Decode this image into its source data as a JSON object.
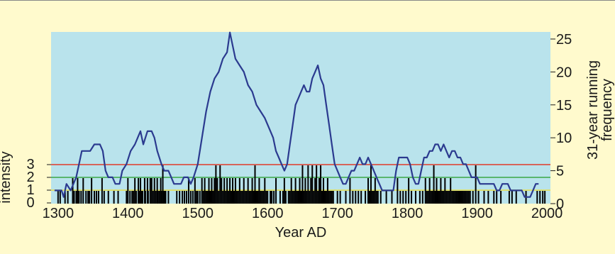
{
  "chart_data": {
    "type": "line",
    "xlabel": "Year AD",
    "ylabel_left": "intensity",
    "ylabel_right_lines": [
      "31-year running",
      "frequency"
    ],
    "xlim": [
      1290,
      2005
    ],
    "ylim_right": [
      0,
      25
    ],
    "ylim_left": [
      0,
      3
    ],
    "x_ticks": [
      1300,
      1400,
      1500,
      1600,
      1700,
      1800,
      1900,
      2000
    ],
    "y_right_ticks": [
      0,
      5,
      10,
      15,
      20,
      25
    ],
    "y_left_ticks": [
      0,
      1,
      2,
      3
    ],
    "grid": false,
    "colors": {
      "page_background": "#fffacd",
      "plot_background": "#b9e3ec",
      "frequency_line": "#2b3a8f",
      "event_bars": "#000000",
      "intensity_1_line": "#e8e04a",
      "intensity_2_line": "#3aa845",
      "intensity_3_line": "#e03a2a"
    },
    "intensity_reference_lines": [
      1,
      2,
      3
    ],
    "series": [
      {
        "values": [
          [
            1295,
            2
          ],
          [
            1305,
            2
          ],
          [
            1308,
            1
          ],
          [
            1312,
            3
          ],
          [
            1318,
            2
          ],
          [
            1322,
            3
          ],
          [
            1326,
            4
          ],
          [
            1330,
            6
          ],
          [
            1334,
            8
          ],
          [
            1340,
            8
          ],
          [
            1346,
            8
          ],
          [
            1352,
            9
          ],
          [
            1360,
            9
          ],
          [
            1364,
            8
          ],
          [
            1368,
            5
          ],
          [
            1372,
            4
          ],
          [
            1378,
            4
          ],
          [
            1382,
            3
          ],
          [
            1388,
            3
          ],
          [
            1392,
            5
          ],
          [
            1398,
            6
          ],
          [
            1404,
            8
          ],
          [
            1410,
            9
          ],
          [
            1414,
            10
          ],
          [
            1418,
            11
          ],
          [
            1422,
            9
          ],
          [
            1428,
            11
          ],
          [
            1434,
            11
          ],
          [
            1438,
            10
          ],
          [
            1442,
            8
          ],
          [
            1448,
            6
          ],
          [
            1452,
            5
          ],
          [
            1458,
            5
          ],
          [
            1462,
            4
          ],
          [
            1466,
            3
          ],
          [
            1472,
            3
          ],
          [
            1476,
            3
          ],
          [
            1480,
            4
          ],
          [
            1486,
            4
          ],
          [
            1490,
            3
          ],
          [
            1494,
            4
          ],
          [
            1500,
            6
          ],
          [
            1506,
            10
          ],
          [
            1512,
            14
          ],
          [
            1518,
            17
          ],
          [
            1524,
            19
          ],
          [
            1530,
            20
          ],
          [
            1536,
            22
          ],
          [
            1542,
            23
          ],
          [
            1546,
            26
          ],
          [
            1550,
            24
          ],
          [
            1554,
            22
          ],
          [
            1560,
            21
          ],
          [
            1566,
            20
          ],
          [
            1572,
            18
          ],
          [
            1578,
            17
          ],
          [
            1584,
            15
          ],
          [
            1590,
            14
          ],
          [
            1596,
            13
          ],
          [
            1600,
            12
          ],
          [
            1604,
            11
          ],
          [
            1608,
            10
          ],
          [
            1612,
            8
          ],
          [
            1616,
            7
          ],
          [
            1620,
            6
          ],
          [
            1624,
            5
          ],
          [
            1628,
            6
          ],
          [
            1632,
            9
          ],
          [
            1636,
            12
          ],
          [
            1640,
            15
          ],
          [
            1644,
            16
          ],
          [
            1648,
            17
          ],
          [
            1652,
            18
          ],
          [
            1656,
            17
          ],
          [
            1660,
            17
          ],
          [
            1664,
            19
          ],
          [
            1668,
            20
          ],
          [
            1672,
            21
          ],
          [
            1676,
            19
          ],
          [
            1680,
            18
          ],
          [
            1684,
            15
          ],
          [
            1688,
            12
          ],
          [
            1692,
            9
          ],
          [
            1696,
            6
          ],
          [
            1700,
            5
          ],
          [
            1704,
            4
          ],
          [
            1708,
            3
          ],
          [
            1712,
            3
          ],
          [
            1716,
            4
          ],
          [
            1720,
            5
          ],
          [
            1724,
            5
          ],
          [
            1728,
            6
          ],
          [
            1732,
            7
          ],
          [
            1736,
            6
          ],
          [
            1740,
            6
          ],
          [
            1744,
            7
          ],
          [
            1748,
            6
          ],
          [
            1752,
            5
          ],
          [
            1756,
            4
          ],
          [
            1760,
            3
          ],
          [
            1764,
            2
          ],
          [
            1768,
            2
          ],
          [
            1772,
            2
          ],
          [
            1776,
            2
          ],
          [
            1780,
            2
          ],
          [
            1784,
            5
          ],
          [
            1788,
            7
          ],
          [
            1792,
            7
          ],
          [
            1796,
            7
          ],
          [
            1800,
            7
          ],
          [
            1804,
            6
          ],
          [
            1808,
            4
          ],
          [
            1812,
            3
          ],
          [
            1816,
            3
          ],
          [
            1820,
            5
          ],
          [
            1824,
            7
          ],
          [
            1828,
            7
          ],
          [
            1832,
            8
          ],
          [
            1836,
            8
          ],
          [
            1840,
            9
          ],
          [
            1844,
            9
          ],
          [
            1848,
            8
          ],
          [
            1852,
            9
          ],
          [
            1856,
            8
          ],
          [
            1860,
            7
          ],
          [
            1864,
            8
          ],
          [
            1868,
            8
          ],
          [
            1872,
            7
          ],
          [
            1876,
            7
          ],
          [
            1880,
            6
          ],
          [
            1884,
            6
          ],
          [
            1888,
            5
          ],
          [
            1892,
            4
          ],
          [
            1896,
            4
          ],
          [
            1900,
            4
          ],
          [
            1904,
            3
          ],
          [
            1908,
            3
          ],
          [
            1912,
            3
          ],
          [
            1916,
            3
          ],
          [
            1920,
            3
          ],
          [
            1924,
            3
          ],
          [
            1928,
            2
          ],
          [
            1932,
            2
          ],
          [
            1936,
            3
          ],
          [
            1940,
            3
          ],
          [
            1944,
            3
          ],
          [
            1948,
            2
          ],
          [
            1952,
            2
          ],
          [
            1956,
            2
          ],
          [
            1960,
            2
          ],
          [
            1964,
            2
          ],
          [
            1968,
            1
          ],
          [
            1972,
            1
          ],
          [
            1976,
            1
          ],
          [
            1980,
            2
          ],
          [
            1984,
            3
          ],
          [
            1988,
            3
          ]
        ]
      }
    ],
    "events": [
      [
        1300,
        1
      ],
      [
        1303,
        1
      ],
      [
        1310,
        1
      ],
      [
        1314,
        1
      ],
      [
        1321,
        2
      ],
      [
        1323,
        1
      ],
      [
        1326,
        1
      ],
      [
        1328,
        2
      ],
      [
        1330,
        1
      ],
      [
        1333,
        1
      ],
      [
        1336,
        2
      ],
      [
        1340,
        1
      ],
      [
        1343,
        1
      ],
      [
        1345,
        1
      ],
      [
        1348,
        2
      ],
      [
        1352,
        1
      ],
      [
        1355,
        1
      ],
      [
        1358,
        1
      ],
      [
        1363,
        2
      ],
      [
        1366,
        1
      ],
      [
        1372,
        1
      ],
      [
        1380,
        1
      ],
      [
        1386,
        1
      ],
      [
        1398,
        1
      ],
      [
        1400,
        2
      ],
      [
        1403,
        1
      ],
      [
        1406,
        1
      ],
      [
        1408,
        1
      ],
      [
        1410,
        2
      ],
      [
        1412,
        1
      ],
      [
        1415,
        2
      ],
      [
        1416,
        1
      ],
      [
        1418,
        2
      ],
      [
        1420,
        1
      ],
      [
        1421,
        1
      ],
      [
        1424,
        2
      ],
      [
        1425,
        1
      ],
      [
        1428,
        2
      ],
      [
        1429,
        1
      ],
      [
        1432,
        2
      ],
      [
        1434,
        2
      ],
      [
        1436,
        1
      ],
      [
        1438,
        2
      ],
      [
        1440,
        1
      ],
      [
        1442,
        2
      ],
      [
        1443,
        1
      ],
      [
        1445,
        1
      ],
      [
        1447,
        2
      ],
      [
        1448,
        1
      ],
      [
        1450,
        3
      ],
      [
        1452,
        1
      ],
      [
        1454,
        1
      ],
      [
        1458,
        1
      ],
      [
        1470,
        1
      ],
      [
        1474,
        1
      ],
      [
        1478,
        1
      ],
      [
        1481,
        1
      ],
      [
        1484,
        1
      ],
      [
        1487,
        2
      ],
      [
        1490,
        1
      ],
      [
        1493,
        1
      ],
      [
        1496,
        2
      ],
      [
        1498,
        1
      ],
      [
        1500,
        1
      ],
      [
        1503,
        1
      ],
      [
        1506,
        2
      ],
      [
        1508,
        1
      ],
      [
        1510,
        2
      ],
      [
        1512,
        1
      ],
      [
        1514,
        1
      ],
      [
        1516,
        2
      ],
      [
        1518,
        1
      ],
      [
        1520,
        2
      ],
      [
        1522,
        1
      ],
      [
        1524,
        2
      ],
      [
        1526,
        3
      ],
      [
        1528,
        2
      ],
      [
        1530,
        1
      ],
      [
        1532,
        3
      ],
      [
        1534,
        2
      ],
      [
        1536,
        1
      ],
      [
        1538,
        2
      ],
      [
        1540,
        1
      ],
      [
        1542,
        2
      ],
      [
        1544,
        1
      ],
      [
        1546,
        2
      ],
      [
        1548,
        1
      ],
      [
        1550,
        2
      ],
      [
        1552,
        1
      ],
      [
        1554,
        2
      ],
      [
        1556,
        1
      ],
      [
        1558,
        1
      ],
      [
        1560,
        2
      ],
      [
        1562,
        1
      ],
      [
        1564,
        1
      ],
      [
        1566,
        2
      ],
      [
        1568,
        1
      ],
      [
        1570,
        1
      ],
      [
        1572,
        2
      ],
      [
        1574,
        1
      ],
      [
        1576,
        1
      ],
      [
        1578,
        2
      ],
      [
        1580,
        1
      ],
      [
        1582,
        3
      ],
      [
        1584,
        1
      ],
      [
        1586,
        1
      ],
      [
        1588,
        2
      ],
      [
        1590,
        1
      ],
      [
        1592,
        1
      ],
      [
        1594,
        1
      ],
      [
        1596,
        2
      ],
      [
        1598,
        1
      ],
      [
        1600,
        1
      ],
      [
        1604,
        1
      ],
      [
        1606,
        1
      ],
      [
        1609,
        1
      ],
      [
        1612,
        2
      ],
      [
        1618,
        1
      ],
      [
        1622,
        1
      ],
      [
        1624,
        2
      ],
      [
        1626,
        1
      ],
      [
        1630,
        1
      ],
      [
        1632,
        1
      ],
      [
        1634,
        2
      ],
      [
        1636,
        1
      ],
      [
        1638,
        1
      ],
      [
        1640,
        2
      ],
      [
        1642,
        1
      ],
      [
        1644,
        1
      ],
      [
        1646,
        2
      ],
      [
        1648,
        1
      ],
      [
        1650,
        3
      ],
      [
        1652,
        1
      ],
      [
        1654,
        2
      ],
      [
        1656,
        1
      ],
      [
        1658,
        3
      ],
      [
        1660,
        1
      ],
      [
        1662,
        2
      ],
      [
        1664,
        3
      ],
      [
        1666,
        1
      ],
      [
        1668,
        2
      ],
      [
        1670,
        3
      ],
      [
        1672,
        1
      ],
      [
        1674,
        2
      ],
      [
        1676,
        3
      ],
      [
        1678,
        1
      ],
      [
        1680,
        2
      ],
      [
        1682,
        1
      ],
      [
        1684,
        1
      ],
      [
        1686,
        2
      ],
      [
        1688,
        1
      ],
      [
        1690,
        1
      ],
      [
        1692,
        1
      ],
      [
        1694,
        1
      ],
      [
        1700,
        1
      ],
      [
        1704,
        1
      ],
      [
        1712,
        1
      ],
      [
        1718,
        2
      ],
      [
        1722,
        1
      ],
      [
        1726,
        1
      ],
      [
        1730,
        1
      ],
      [
        1734,
        1
      ],
      [
        1740,
        1
      ],
      [
        1744,
        2
      ],
      [
        1746,
        1
      ],
      [
        1748,
        3
      ],
      [
        1750,
        1
      ],
      [
        1752,
        1
      ],
      [
        1754,
        2
      ],
      [
        1756,
        1
      ],
      [
        1758,
        1
      ],
      [
        1762,
        1
      ],
      [
        1770,
        1
      ],
      [
        1778,
        1
      ],
      [
        1786,
        2
      ],
      [
        1790,
        1
      ],
      [
        1794,
        1
      ],
      [
        1798,
        1
      ],
      [
        1802,
        2
      ],
      [
        1806,
        1
      ],
      [
        1812,
        1
      ],
      [
        1818,
        1
      ],
      [
        1822,
        1
      ],
      [
        1826,
        2
      ],
      [
        1828,
        1
      ],
      [
        1830,
        1
      ],
      [
        1832,
        2
      ],
      [
        1834,
        1
      ],
      [
        1836,
        1
      ],
      [
        1838,
        3
      ],
      [
        1840,
        1
      ],
      [
        1842,
        2
      ],
      [
        1844,
        1
      ],
      [
        1846,
        1
      ],
      [
        1848,
        2
      ],
      [
        1850,
        1
      ],
      [
        1852,
        1
      ],
      [
        1854,
        2
      ],
      [
        1856,
        1
      ],
      [
        1858,
        1
      ],
      [
        1860,
        1
      ],
      [
        1862,
        2
      ],
      [
        1864,
        1
      ],
      [
        1866,
        1
      ],
      [
        1868,
        1
      ],
      [
        1870,
        1
      ],
      [
        1872,
        1
      ],
      [
        1874,
        1
      ],
      [
        1876,
        1
      ],
      [
        1878,
        1
      ],
      [
        1880,
        1
      ],
      [
        1882,
        1
      ],
      [
        1884,
        1
      ],
      [
        1886,
        1
      ],
      [
        1888,
        1
      ],
      [
        1890,
        1
      ],
      [
        1894,
        1
      ],
      [
        1898,
        3
      ],
      [
        1902,
        1
      ],
      [
        1910,
        1
      ],
      [
        1916,
        1
      ],
      [
        1924,
        1
      ],
      [
        1928,
        1
      ],
      [
        1934,
        1
      ],
      [
        1946,
        1
      ],
      [
        1950,
        1
      ],
      [
        1956,
        1
      ],
      [
        1970,
        1
      ],
      [
        1986,
        1
      ],
      [
        1990,
        1
      ],
      [
        1994,
        1
      ],
      [
        1997,
        1
      ]
    ]
  }
}
